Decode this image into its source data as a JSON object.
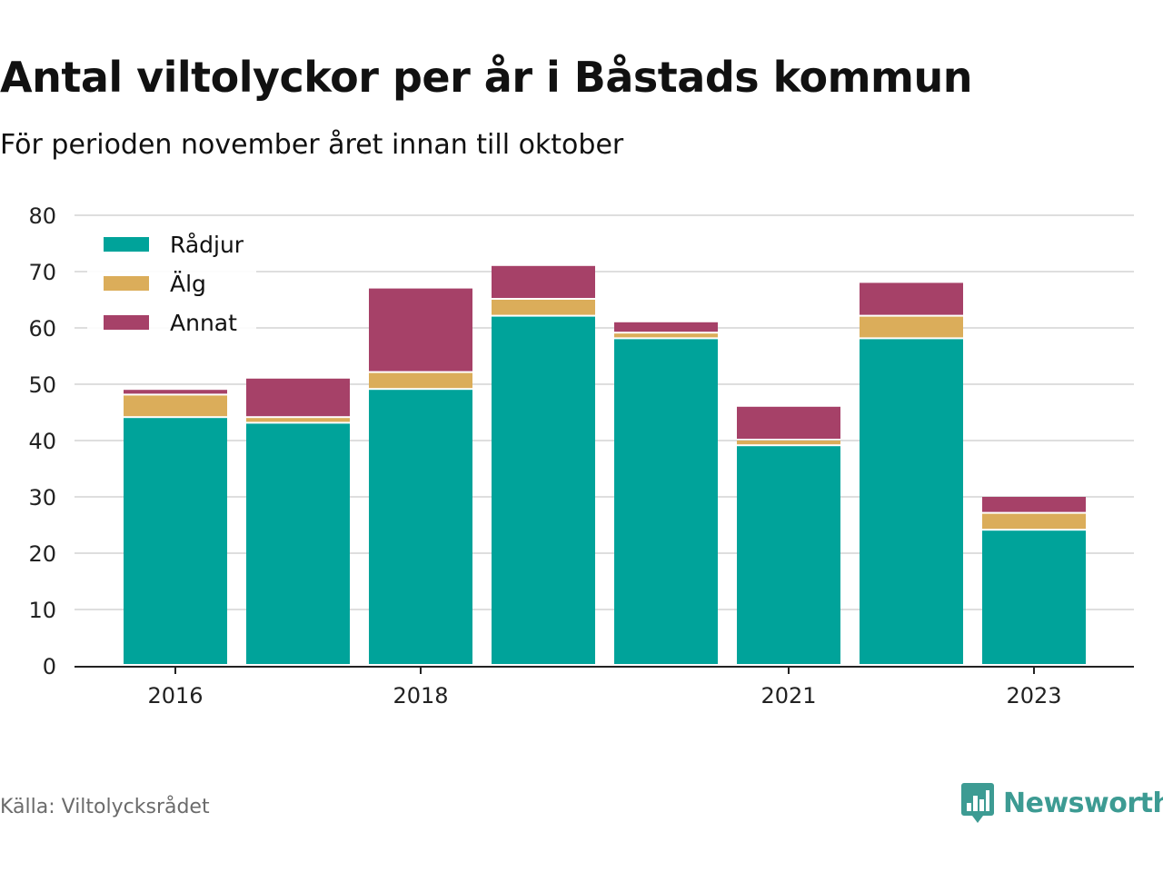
{
  "header": {
    "title": "Antal viltolyckor per år i Båstads kommun",
    "subtitle": "För perioden november året innan till oktober"
  },
  "footer": {
    "source": "Källa: Viltolycksrådet",
    "brand": "Newsworthy",
    "brand_icon": "bar-chart-speech-bubble-icon",
    "brand_color": "#3d9b93"
  },
  "chart_data": {
    "type": "bar",
    "stacked": true,
    "categories": [
      "2016",
      "2017",
      "2018",
      "2019",
      "2020",
      "2021",
      "2022",
      "2023"
    ],
    "x_tick_labels": [
      "2016",
      "",
      "2018",
      "",
      "",
      "2021",
      "",
      "2023"
    ],
    "series": [
      {
        "name": "Rådjur",
        "color": "#00a39a",
        "values": [
          44,
          43,
          49,
          62,
          58,
          39,
          58,
          24
        ]
      },
      {
        "name": "Älg",
        "color": "#dbad5a",
        "values": [
          4,
          1,
          3,
          3,
          1,
          1,
          4,
          3
        ]
      },
      {
        "name": "Annat",
        "color": "#a64168",
        "values": [
          1,
          7,
          15,
          6,
          2,
          6,
          6,
          3
        ]
      }
    ],
    "ylim": [
      0,
      80
    ],
    "yticks": [
      0,
      10,
      20,
      30,
      40,
      50,
      60,
      70,
      80
    ],
    "xlabel": "",
    "ylabel": "",
    "grid": true,
    "legend_position": "top-left"
  }
}
